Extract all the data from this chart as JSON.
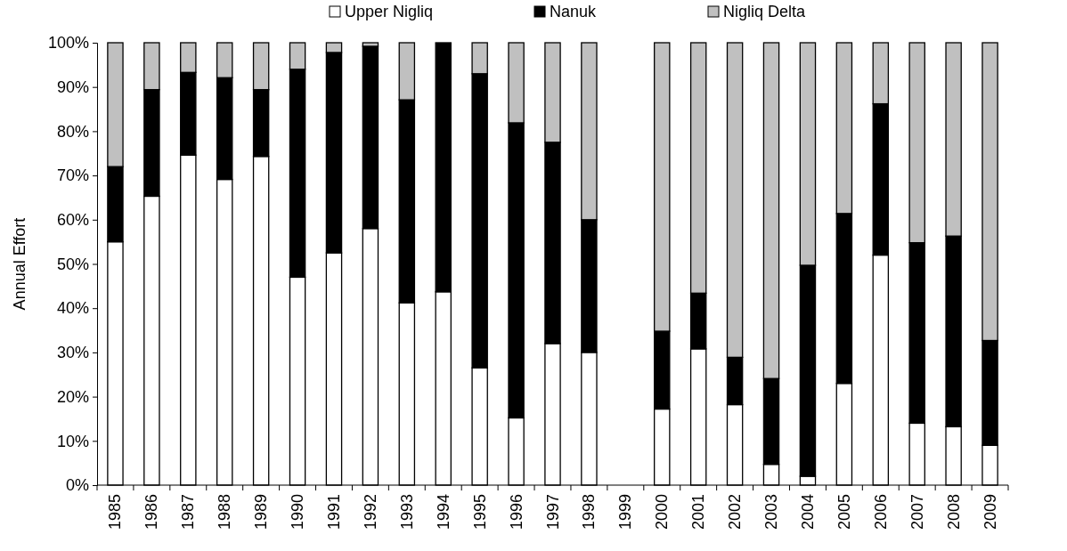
{
  "chart_data": {
    "type": "bar",
    "stacked": true,
    "ylabel": "Annual Effort",
    "categories": [
      "1985",
      "1986",
      "1987",
      "1988",
      "1989",
      "1990",
      "1991",
      "1992",
      "1993",
      "1994",
      "1995",
      "1996",
      "1997",
      "1998",
      "1999",
      "2000",
      "2001",
      "2002",
      "2003",
      "2004",
      "2005",
      "2006",
      "2007",
      "2008",
      "2009"
    ],
    "series": [
      {
        "name": "Upper Nigliq",
        "color": "#ffffff",
        "values": [
          55,
          65.3,
          74.6,
          69.1,
          74.3,
          47,
          52.5,
          58,
          41.2,
          43.7,
          26.5,
          15.2,
          32,
          30,
          null,
          17.2,
          30.8,
          18.2,
          4.7,
          2,
          23,
          52,
          14,
          13.2,
          9
        ]
      },
      {
        "name": "Nanuk",
        "color": "#000000",
        "values": [
          17,
          24.1,
          18.7,
          23,
          15.1,
          47,
          45.3,
          41.2,
          45.9,
          56.3,
          66.5,
          66.7,
          45.5,
          30,
          null,
          17.6,
          12.6,
          10.7,
          19.4,
          47.7,
          38.4,
          34.2,
          40.8,
          43.1,
          23.7
        ]
      },
      {
        "name": "Nigliq Delta",
        "color": "#c0c0c0",
        "values": [
          28,
          10.6,
          6.7,
          7.9,
          10.6,
          6,
          2.2,
          0.8,
          12.9,
          0,
          7,
          18.1,
          22.5,
          40,
          null,
          65.2,
          56.6,
          71.1,
          75.9,
          50.3,
          38.6,
          13.8,
          45.2,
          43.7,
          67.3
        ]
      }
    ],
    "ylim": [
      0,
      100
    ],
    "yticks": [
      {
        "value": 0,
        "label": "0%"
      },
      {
        "value": 10,
        "label": "10%"
      },
      {
        "value": 20,
        "label": "20%"
      },
      {
        "value": 30,
        "label": "30%"
      },
      {
        "value": 40,
        "label": "40%"
      },
      {
        "value": 50,
        "label": "50%"
      },
      {
        "value": 60,
        "label": "60%"
      },
      {
        "value": 70,
        "label": "70%"
      },
      {
        "value": 80,
        "label": "80%"
      },
      {
        "value": 90,
        "label": "90%"
      },
      {
        "value": 100,
        "label": "100%"
      }
    ],
    "legend": "top"
  }
}
